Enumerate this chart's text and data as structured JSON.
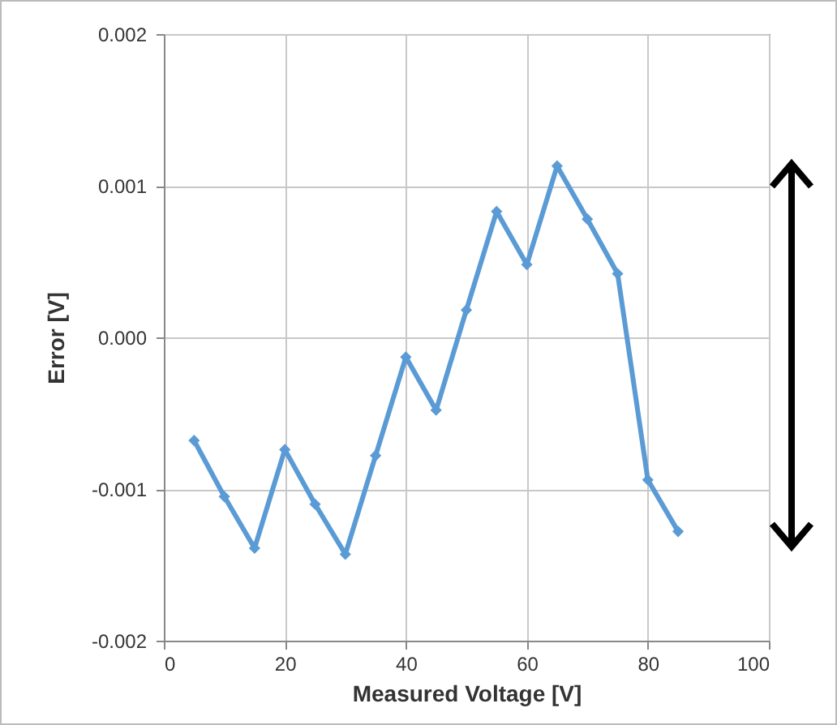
{
  "chart_data": {
    "type": "line",
    "xlabel": "Measured Voltage [V]",
    "ylabel": "Error [V]",
    "x": [
      5,
      10,
      15,
      20,
      25,
      30,
      35,
      40,
      45,
      50,
      55,
      60,
      65,
      70,
      75,
      80,
      85
    ],
    "series": [
      {
        "color": "#5b9bd5",
        "values": [
          -0.00068,
          -0.00105,
          -0.00139,
          -0.00074,
          -0.0011,
          -0.00143,
          -0.00078,
          -0.00013,
          -0.00048,
          0.00018,
          0.00083,
          0.00048,
          0.00113,
          0.00078,
          0.00042,
          -0.00094,
          -0.00128
        ]
      }
    ],
    "xlim": [
      0,
      100
    ],
    "xticks": [
      0,
      20,
      40,
      60,
      80,
      100
    ],
    "ylim": [
      -0.002,
      0.002
    ],
    "yticks": [
      -0.002,
      -0.001,
      {
        "value": 0,
        "label": "0.000"
      },
      0.001,
      0.002
    ],
    "grid": true,
    "marker": "diamond",
    "line_style": "solid",
    "legend": false
  }
}
